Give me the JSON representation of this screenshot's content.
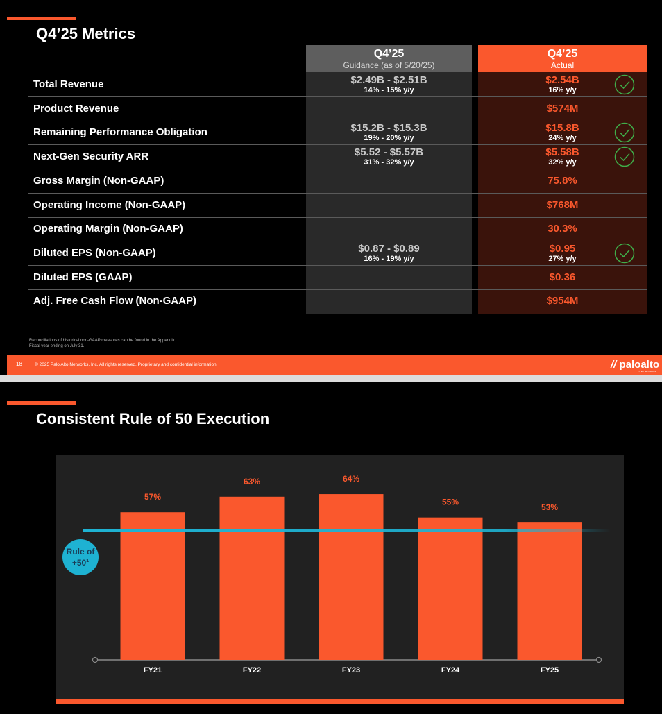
{
  "slide1": {
    "title": "Q4’25 Metrics",
    "guidance_header": {
      "title": "Q4’25",
      "subtitle": "Guidance (as of 5/20/25)"
    },
    "actual_header": {
      "title": "Q4’25",
      "subtitle": "Actual"
    },
    "rows": [
      {
        "label": "Total Revenue",
        "guidance": "$2.49B - $2.51B",
        "guidance_sub": "14% - 15% y/y",
        "actual": "$2.54B",
        "actual_sub": "16% y/y",
        "check": true
      },
      {
        "label": "Product Revenue",
        "guidance": "",
        "guidance_sub": "",
        "actual": "$574M",
        "actual_sub": "",
        "check": false
      },
      {
        "label": "Remaining Performance Obligation",
        "guidance": "$15.2B - $15.3B",
        "guidance_sub": "19% - 20% y/y",
        "actual": "$15.8B",
        "actual_sub": "24% y/y",
        "check": true
      },
      {
        "label": "Next-Gen Security ARR",
        "guidance": "$5.52 - $5.57B",
        "guidance_sub": "31% - 32% y/y",
        "actual": "$5.58B",
        "actual_sub": "32% y/y",
        "check": true
      },
      {
        "label": "Gross Margin (Non-GAAP)",
        "guidance": "",
        "guidance_sub": "",
        "actual": "75.8%",
        "actual_sub": "",
        "check": false
      },
      {
        "label": "Operating Income (Non-GAAP)",
        "guidance": "",
        "guidance_sub": "",
        "actual": "$768M",
        "actual_sub": "",
        "check": false
      },
      {
        "label": "Operating Margin (Non-GAAP)",
        "guidance": "",
        "guidance_sub": "",
        "actual": "30.3%",
        "actual_sub": "",
        "check": false
      },
      {
        "label": "Diluted EPS (Non-GAAP)",
        "guidance": "$0.87 - $0.89",
        "guidance_sub": "16% - 19% y/y",
        "actual": "$0.95",
        "actual_sub": "27% y/y",
        "check": true
      },
      {
        "label": "Diluted EPS (GAAP)",
        "guidance": "",
        "guidance_sub": "",
        "actual": "$0.36",
        "actual_sub": "",
        "check": false
      },
      {
        "label": "Adj. Free Cash Flow (Non-GAAP)",
        "guidance": "",
        "guidance_sub": "",
        "actual": "$954M",
        "actual_sub": "",
        "check": false
      }
    ],
    "footnote_line1": "Reconciliations of historical non-GAAP measures can be found in the Appendix.",
    "footnote_line2": "Fiscal year ending on July 31.",
    "page_number": "18",
    "copyright": "© 2025 Palo Alto Networks, Inc. All rights reserved. Proprietary and confidential information.",
    "logo_text": "paloalto",
    "logo_subtext": "NETWORKS"
  },
  "slide2": {
    "title": "Consistent Rule of 50 Execution",
    "rule_label_line1": "Rule of",
    "rule_label_line2": "+50",
    "rule_label_sup": "1"
  },
  "colors": {
    "accent": "#fa582d",
    "rule_line": "#1eb2d2",
    "background": "#000000"
  },
  "chart_data": {
    "type": "bar",
    "title": "Consistent Rule of 50 Execution",
    "categories": [
      "FY21",
      "FY22",
      "FY23",
      "FY24",
      "FY25"
    ],
    "values": [
      57,
      63,
      64,
      55,
      53
    ],
    "value_labels": [
      "57%",
      "63%",
      "64%",
      "55%",
      "53%"
    ],
    "reference_line": {
      "label": "Rule of +50",
      "value": 50
    },
    "ylim": [
      0,
      75
    ],
    "xlabel": "",
    "ylabel": ""
  }
}
